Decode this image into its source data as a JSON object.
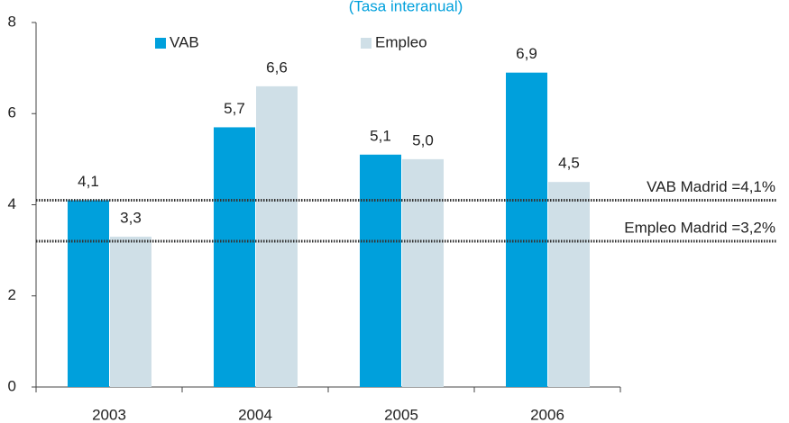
{
  "chart_data": {
    "type": "bar",
    "subtitle": "(Tasa interanual)",
    "categories": [
      "2003",
      "2004",
      "2005",
      "2006"
    ],
    "series": [
      {
        "name": "VAB",
        "color": "#00a0dc",
        "values": [
          4.1,
          5.7,
          5.1,
          6.9
        ],
        "value_labels": [
          "4,1",
          "5,7",
          "5,1",
          "6,9"
        ]
      },
      {
        "name": "Empleo",
        "color": "#cfdfe7",
        "values": [
          3.3,
          6.6,
          5.0,
          4.5
        ],
        "value_labels": [
          "3,3",
          "6,6",
          "5,0",
          "4,5"
        ]
      }
    ],
    "reference_lines": [
      {
        "label": "VAB Madrid =4,1%",
        "value": 4.1
      },
      {
        "label": "Empleo Madrid =3,2%",
        "value": 3.2
      }
    ],
    "ylim": [
      0,
      8
    ],
    "yticks": [
      0,
      2,
      4,
      6,
      8
    ],
    "grid": false
  }
}
